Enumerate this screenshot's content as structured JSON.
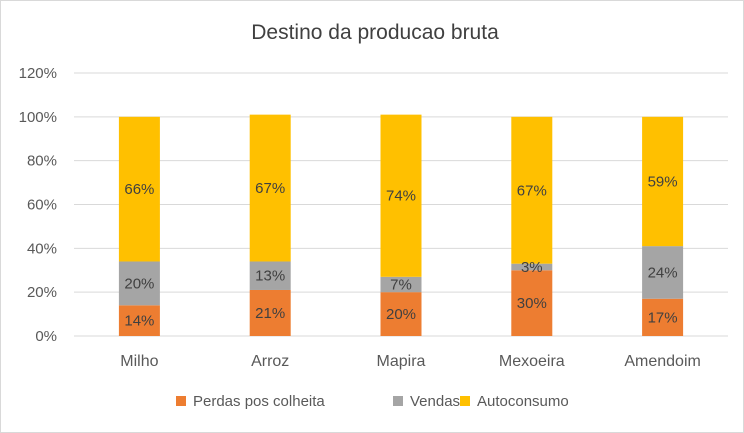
{
  "chart_data": {
    "type": "bar",
    "stacked": true,
    "title": "Destino da producao bruta",
    "categories": [
      "Milho",
      "Arroz",
      "Mapira",
      "Mexoeira",
      "Amendoim"
    ],
    "series": [
      {
        "name": "Perdas pos colheita",
        "values": [
          14,
          21,
          20,
          30,
          17
        ],
        "labels": [
          "14%",
          "21%",
          "20%",
          "30%",
          "17%"
        ],
        "color": "#ED7D31"
      },
      {
        "name": "Vendas",
        "values": [
          20,
          13,
          7,
          3,
          24
        ],
        "labels": [
          "20%",
          "13%",
          "7%",
          "3%",
          "24%"
        ],
        "color": "#A5A5A5"
      },
      {
        "name": "Autoconsumo",
        "values": [
          66,
          67,
          74,
          67,
          59
        ],
        "labels": [
          "66%",
          "67%",
          "74%",
          "67%",
          "59%"
        ],
        "color": "#FFC000"
      }
    ],
    "yticks": [
      "0%",
      "20%",
      "40%",
      "60%",
      "80%",
      "100%",
      "120%"
    ],
    "ylim": [
      0,
      120
    ],
    "grid": true,
    "legend_position": "bottom"
  }
}
